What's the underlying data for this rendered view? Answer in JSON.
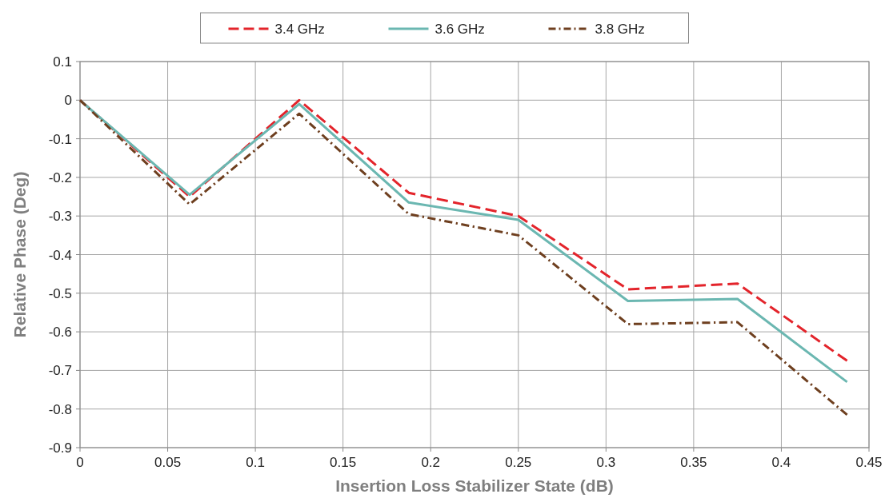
{
  "chart_data": {
    "type": "line",
    "xlabel": "Insertion Loss Stabilizer State (dB)",
    "ylabel": "Relative Phase (Deg)",
    "x": [
      0,
      0.0625,
      0.125,
      0.1875,
      0.25,
      0.3125,
      0.375,
      0.4375
    ],
    "series": [
      {
        "name": "3.4 GHz",
        "color": "#e3242b",
        "line_style": "dashed",
        "values": [
          0,
          -0.25,
          0,
          -0.24,
          -0.3,
          -0.49,
          -0.475,
          -0.675
        ]
      },
      {
        "name": "3.6 GHz",
        "color": "#6bb7b1",
        "line_style": "solid",
        "values": [
          0,
          -0.245,
          -0.01,
          -0.265,
          -0.31,
          -0.52,
          -0.515,
          -0.73
        ]
      },
      {
        "name": "3.8 GHz",
        "color": "#6e3f1f",
        "line_style": "dashdot",
        "values": [
          0,
          -0.27,
          -0.035,
          -0.295,
          -0.35,
          -0.58,
          -0.575,
          -0.815
        ]
      }
    ],
    "xlim": [
      0,
      0.45
    ],
    "xticks": [
      0,
      0.05,
      0.1,
      0.15,
      0.2,
      0.25,
      0.3,
      0.35,
      0.4,
      0.45
    ],
    "ylim": [
      -0.9,
      0.1
    ],
    "yticks": [
      0.1,
      0,
      -0.1,
      -0.2,
      -0.3,
      -0.4,
      -0.5,
      -0.6,
      -0.7,
      -0.8,
      -0.9
    ],
    "grid": true,
    "legend": "top",
    "marker": "none"
  }
}
